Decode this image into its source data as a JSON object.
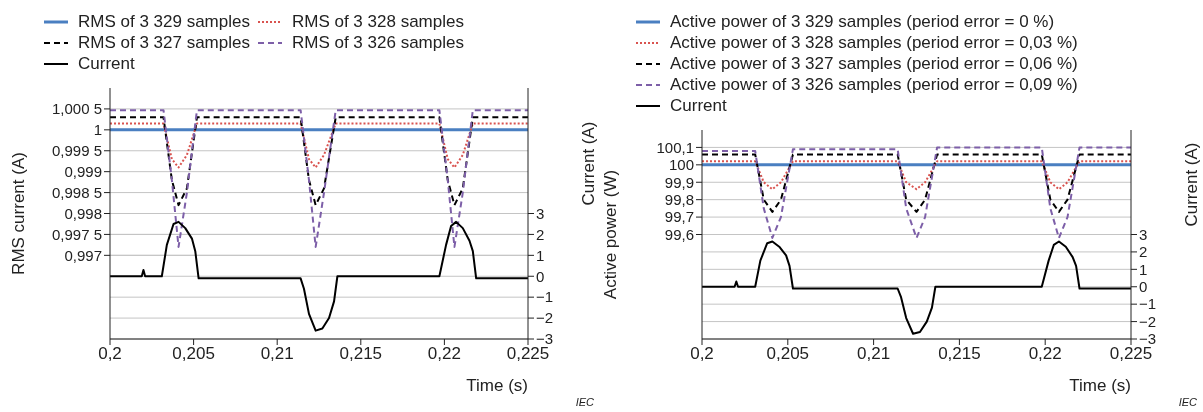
{
  "chart_data": [
    {
      "type": "line",
      "xlabel": "Time (s)",
      "ylabel": "RMS current (A)",
      "y2label": "Current (A)",
      "x": [
        0.2,
        0.2032,
        0.2037,
        0.2041,
        0.2046,
        0.2052,
        0.2114,
        0.2119,
        0.2123,
        0.2128,
        0.2135,
        0.2197,
        0.2202,
        0.2206,
        0.2211,
        0.2217,
        0.225
      ],
      "series": [
        {
          "name": "RMS of 3 329 samples",
          "color": "#4a7fc1",
          "line_style": "solid",
          "values": [
            1,
            1,
            1,
            1,
            1,
            1,
            1,
            1,
            1,
            1,
            1,
            1,
            1,
            1,
            1,
            1,
            1
          ]
        },
        {
          "name": "RMS of 3 328 samples",
          "color": "#d9534f",
          "line_style": "dotted",
          "values": [
            1.00015,
            1.00015,
            0.9993,
            0.9991,
            0.9994,
            1.00015,
            1.00015,
            0.9993,
            0.9991,
            0.9994,
            1.00015,
            1.00015,
            0.9993,
            0.9991,
            0.9994,
            1.00015,
            1.00015
          ]
        },
        {
          "name": "RMS of 3 327 samples",
          "color": "#000000",
          "line_style": "dashed",
          "values": [
            1.0003,
            1.0003,
            0.9988,
            0.9982,
            0.9986,
            1.0003,
            1.0003,
            0.9988,
            0.9982,
            0.9986,
            1.0003,
            1.0003,
            0.9988,
            0.9982,
            0.9986,
            1.0003,
            1.0003
          ]
        },
        {
          "name": "RMS of 3 326 samples",
          "color": "#7d5fa8",
          "line_style": "dashed",
          "values": [
            1.00047,
            1.00047,
            0.9988,
            0.9972,
            0.9985,
            1.00047,
            1.00047,
            0.9988,
            0.9972,
            0.9985,
            1.00047,
            1.00047,
            0.9988,
            0.9972,
            0.9985,
            1.00047,
            1.00047
          ]
        },
        {
          "name": "Current",
          "color": "#000000",
          "line_style": "solid",
          "axis": "y2",
          "x": [
            0.2,
            0.2019,
            0.202,
            0.2021,
            0.2031,
            0.2034,
            0.2038,
            0.2041,
            0.2045,
            0.2049,
            0.2051,
            0.2053,
            0.2054,
            0.2114,
            0.2116,
            0.2119,
            0.2123,
            0.2127,
            0.2131,
            0.2134,
            0.2136,
            0.2197,
            0.2201,
            0.2204,
            0.2207,
            0.2211,
            0.2215,
            0.2217,
            0.2219,
            0.222,
            0.225
          ],
          "values": [
            0,
            0,
            0.3,
            0,
            0,
            1.5,
            2.5,
            2.6,
            2.3,
            1.8,
            1.2,
            -0.1,
            -0.1,
            -0.1,
            -0.6,
            -1.8,
            -2.6,
            -2.5,
            -2,
            -1.2,
            0,
            0,
            1.5,
            2.4,
            2.6,
            2.3,
            1.7,
            1.2,
            -0.1,
            -0.1,
            -0.1
          ]
        }
      ],
      "xlim": [
        0.2,
        0.225
      ],
      "xticks": [
        {
          "value": 0.2,
          "label": "0,2"
        },
        {
          "value": 0.205,
          "label": "0,205"
        },
        {
          "value": 0.21,
          "label": "0,21"
        },
        {
          "value": 0.215,
          "label": "0,215"
        },
        {
          "value": 0.22,
          "label": "0,22"
        },
        {
          "value": 0.225,
          "label": "0,225"
        }
      ],
      "ylim": [
        0.995,
        1.001
      ],
      "yticks": [
        {
          "value": 0.997,
          "label": "0,997"
        },
        {
          "value": 0.9975,
          "label": "0,997 5"
        },
        {
          "value": 0.998,
          "label": "0,998"
        },
        {
          "value": 0.9985,
          "label": "0,998 5"
        },
        {
          "value": 0.999,
          "label": "0,999"
        },
        {
          "value": 0.9995,
          "label": "0,999 5"
        },
        1,
        {
          "value": 1.0005,
          "label": "1,000 5"
        }
      ],
      "y2lim": [
        -3,
        9
      ],
      "y2ticks": [
        {
          "value": -3,
          "label": "−3"
        },
        {
          "value": -2,
          "label": "−2"
        },
        {
          "value": -1,
          "label": "−1"
        },
        0,
        1,
        2,
        3
      ],
      "grid": "y",
      "legend": "top left",
      "marker": "none",
      "annotations": [
        "IEC"
      ]
    },
    {
      "type": "line",
      "xlabel": "Time (s)",
      "ylabel": "Active power (W)",
      "y2label": "Current (A)",
      "x": [
        0.2,
        0.2031,
        0.2036,
        0.2041,
        0.2046,
        0.2053,
        0.2114,
        0.2119,
        0.2125,
        0.213,
        0.2137,
        0.2198,
        0.2203,
        0.2208,
        0.2213,
        0.222,
        0.225
      ],
      "series": [
        {
          "name": "Active power of 3 329 samples (period error = 0 %)",
          "color": "#4a7fc1",
          "line_style": "solid",
          "values": [
            100,
            100,
            100,
            100,
            100,
            100,
            100,
            100,
            100,
            100,
            100,
            100,
            100,
            100,
            100,
            100,
            100
          ]
        },
        {
          "name": "Active power of 3 328 samples (period error = 0,03 %)",
          "color": "#d9534f",
          "line_style": "dotted",
          "values": [
            100.02,
            100.02,
            99.9,
            99.86,
            99.9,
            100.02,
            100.02,
            99.9,
            99.86,
            99.9,
            100.02,
            100.02,
            99.9,
            99.86,
            99.9,
            100.02,
            100.02
          ]
        },
        {
          "name": "Active power of 3 327 samples (period error = 0,06 %)",
          "color": "#000000",
          "line_style": "dashed",
          "values": [
            100.06,
            100.06,
            99.8,
            99.73,
            99.8,
            100.06,
            100.06,
            99.8,
            99.73,
            99.8,
            100.06,
            100.06,
            99.8,
            99.73,
            99.8,
            100.06,
            100.06
          ]
        },
        {
          "name": "Active power of 3 326 samples (period error = 0,09 %)",
          "color": "#7d5fa8",
          "line_style": "dashed",
          "values": [
            100.08,
            100.08,
            99.75,
            99.58,
            99.7,
            100.09,
            100.09,
            99.75,
            99.58,
            99.7,
            100.1,
            100.1,
            99.75,
            99.58,
            99.7,
            100.1,
            100.1
          ]
        },
        {
          "name": "Current",
          "color": "#000000",
          "line_style": "solid",
          "axis": "y2",
          "x": [
            0.2,
            0.2019,
            0.202,
            0.2021,
            0.2031,
            0.2034,
            0.2038,
            0.2041,
            0.2045,
            0.2049,
            0.2051,
            0.2053,
            0.2054,
            0.2114,
            0.2116,
            0.2119,
            0.2123,
            0.2127,
            0.2131,
            0.2134,
            0.2136,
            0.2198,
            0.2202,
            0.2205,
            0.2208,
            0.2212,
            0.2216,
            0.2218,
            0.222,
            0.2221,
            0.225
          ],
          "values": [
            0,
            0,
            0.3,
            0,
            0,
            1.5,
            2.5,
            2.6,
            2.3,
            1.8,
            1.2,
            -0.1,
            -0.1,
            -0.1,
            -0.6,
            -1.8,
            -2.7,
            -2.6,
            -2,
            -1.2,
            0,
            0,
            1.5,
            2.4,
            2.6,
            2.3,
            1.7,
            1.2,
            -0.1,
            -0.1,
            -0.1
          ]
        }
      ],
      "xlim": [
        0.2,
        0.225
      ],
      "xticks": [
        {
          "value": 0.2,
          "label": "0,2"
        },
        {
          "value": 0.205,
          "label": "0,205"
        },
        {
          "value": 0.21,
          "label": "0,21"
        },
        {
          "value": 0.215,
          "label": "0,215"
        },
        {
          "value": 0.22,
          "label": "0,22"
        },
        {
          "value": 0.225,
          "label": "0,225"
        }
      ],
      "ylim": [
        99,
        100.2
      ],
      "yticks": [
        {
          "value": 99.6,
          "label": "99,6"
        },
        {
          "value": 99.7,
          "label": "99,7"
        },
        {
          "value": 99.8,
          "label": "99,8"
        },
        {
          "value": 99.9,
          "label": "99,9"
        },
        100,
        {
          "value": 100.1,
          "label": "100,1"
        }
      ],
      "y2lim": [
        -3,
        9
      ],
      "y2ticks": [
        {
          "value": -3,
          "label": "−3"
        },
        {
          "value": -2,
          "label": "−2"
        },
        {
          "value": -1,
          "label": "−1"
        },
        0,
        1,
        2,
        3
      ],
      "grid": "y",
      "legend": "top left",
      "marker": "none",
      "annotations": [
        "IEC"
      ]
    }
  ]
}
